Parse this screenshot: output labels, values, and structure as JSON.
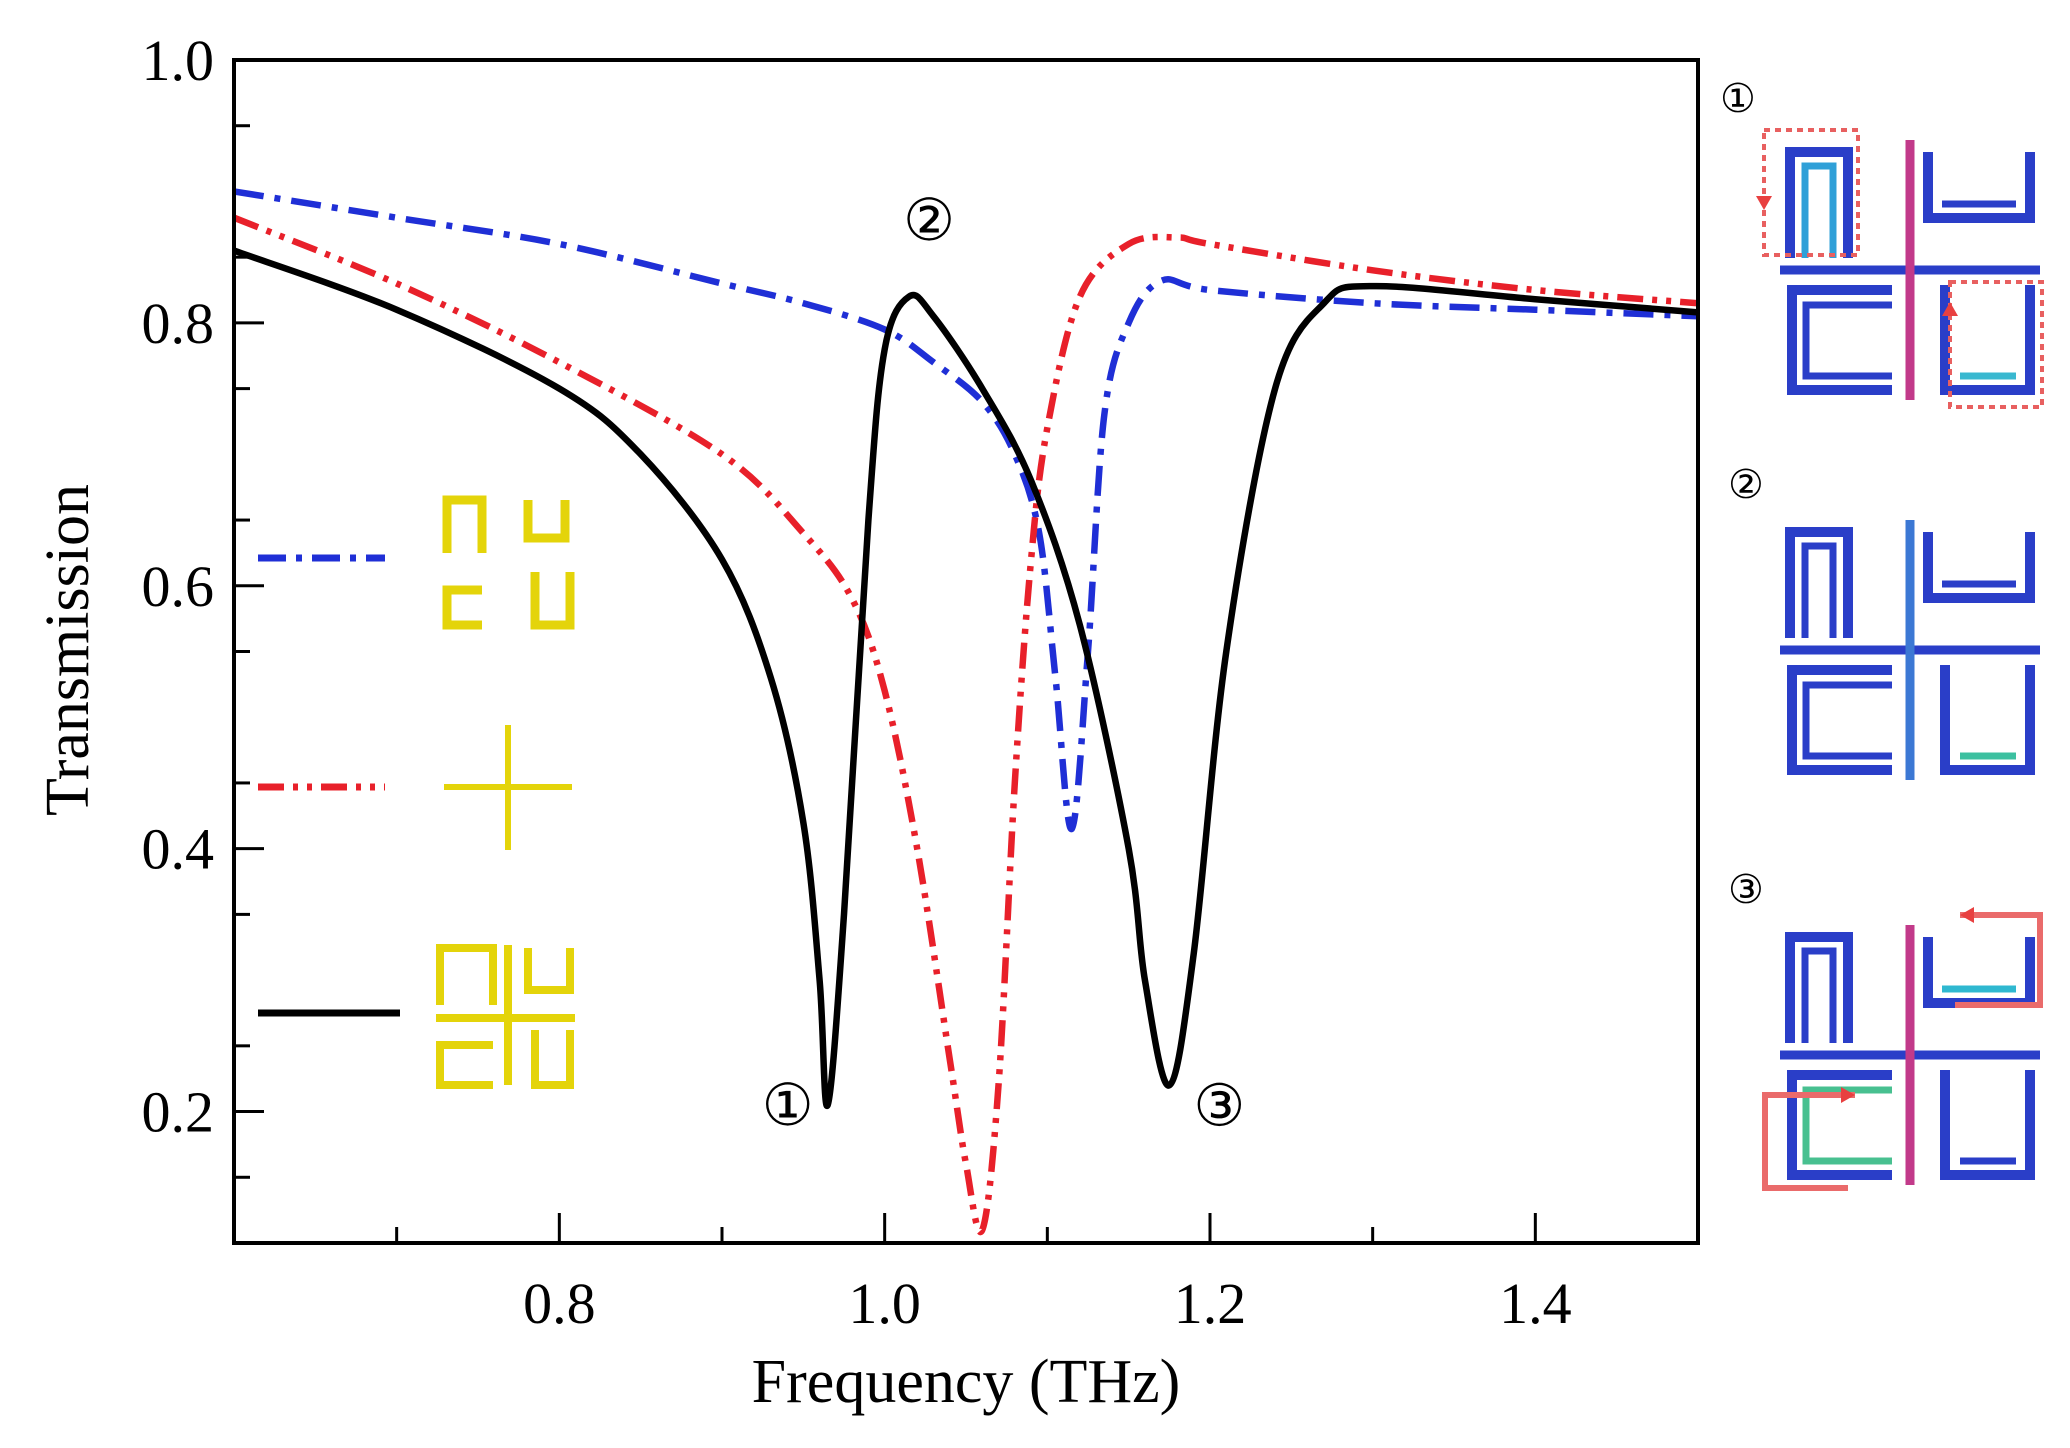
{
  "chart_data": {
    "type": "line",
    "xlabel": "Frequency (THz)",
    "ylabel": "Transmission",
    "xlim": [
      0.6,
      1.5
    ],
    "ylim": [
      0.1,
      1.0
    ],
    "xticks": [
      0.8,
      1.0,
      1.2,
      1.4
    ],
    "yticks": [
      0.2,
      0.4,
      0.6,
      0.8,
      1.0
    ],
    "x_tick_labels": [
      "0.8",
      "1.0",
      "1.2",
      "1.4"
    ],
    "y_tick_labels": [
      "0.2",
      "0.4",
      "0.6",
      "0.8",
      "1.0"
    ],
    "legend_placement": "left",
    "series": [
      {
        "color": "#1f2fd6",
        "style": "dash-dot",
        "legend_icon": "four-split-ring-resonators-icon",
        "x": [
          0.6,
          0.7,
          0.8,
          0.9,
          0.95,
          1.0,
          1.03,
          1.06,
          1.08,
          1.095,
          1.105,
          1.115,
          1.125,
          1.135,
          1.15,
          1.17,
          1.2,
          1.3,
          1.4,
          1.5
        ],
        "y": [
          0.9,
          0.88,
          0.86,
          0.83,
          0.815,
          0.795,
          0.77,
          0.74,
          0.7,
          0.64,
          0.53,
          0.415,
          0.55,
          0.73,
          0.8,
          0.832,
          0.825,
          0.815,
          0.81,
          0.805
        ]
      },
      {
        "color": "#e8202a",
        "style": "dash-dot-dot",
        "legend_icon": "cross-wire-icon",
        "x": [
          0.6,
          0.7,
          0.8,
          0.9,
          0.95,
          0.98,
          1.0,
          1.02,
          1.04,
          1.05,
          1.06,
          1.07,
          1.08,
          1.09,
          1.1,
          1.12,
          1.15,
          1.18,
          1.2,
          1.3,
          1.4,
          1.5
        ],
        "y": [
          0.88,
          0.83,
          0.77,
          0.7,
          0.64,
          0.59,
          0.52,
          0.4,
          0.24,
          0.16,
          0.11,
          0.22,
          0.45,
          0.62,
          0.72,
          0.82,
          0.86,
          0.865,
          0.86,
          0.84,
          0.825,
          0.815
        ]
      },
      {
        "color": "#000000",
        "style": "solid",
        "legend_icon": "combined-resonator-icon",
        "x": [
          0.6,
          0.7,
          0.8,
          0.85,
          0.9,
          0.93,
          0.95,
          0.96,
          0.965,
          0.975,
          0.99,
          1.0,
          1.015,
          1.03,
          1.06,
          1.09,
          1.12,
          1.15,
          1.16,
          1.175,
          1.19,
          1.21,
          1.24,
          1.27,
          1.3,
          1.4,
          1.5
        ],
        "y": [
          0.855,
          0.81,
          0.75,
          0.7,
          0.62,
          0.53,
          0.42,
          0.3,
          0.205,
          0.35,
          0.65,
          0.78,
          0.82,
          0.805,
          0.75,
          0.68,
          0.57,
          0.4,
          0.3,
          0.22,
          0.32,
          0.55,
          0.75,
          0.815,
          0.828,
          0.818,
          0.808
        ]
      }
    ],
    "annotations": [
      {
        "label": "①",
        "x": 0.965,
        "y": 0.205
      },
      {
        "label": "②",
        "x": 1.015,
        "y": 0.825
      },
      {
        "label": "③",
        "x": 1.175,
        "y": 0.22
      }
    ]
  },
  "insets": [
    {
      "label": "①"
    },
    {
      "label": "②"
    },
    {
      "label": "③"
    }
  ]
}
